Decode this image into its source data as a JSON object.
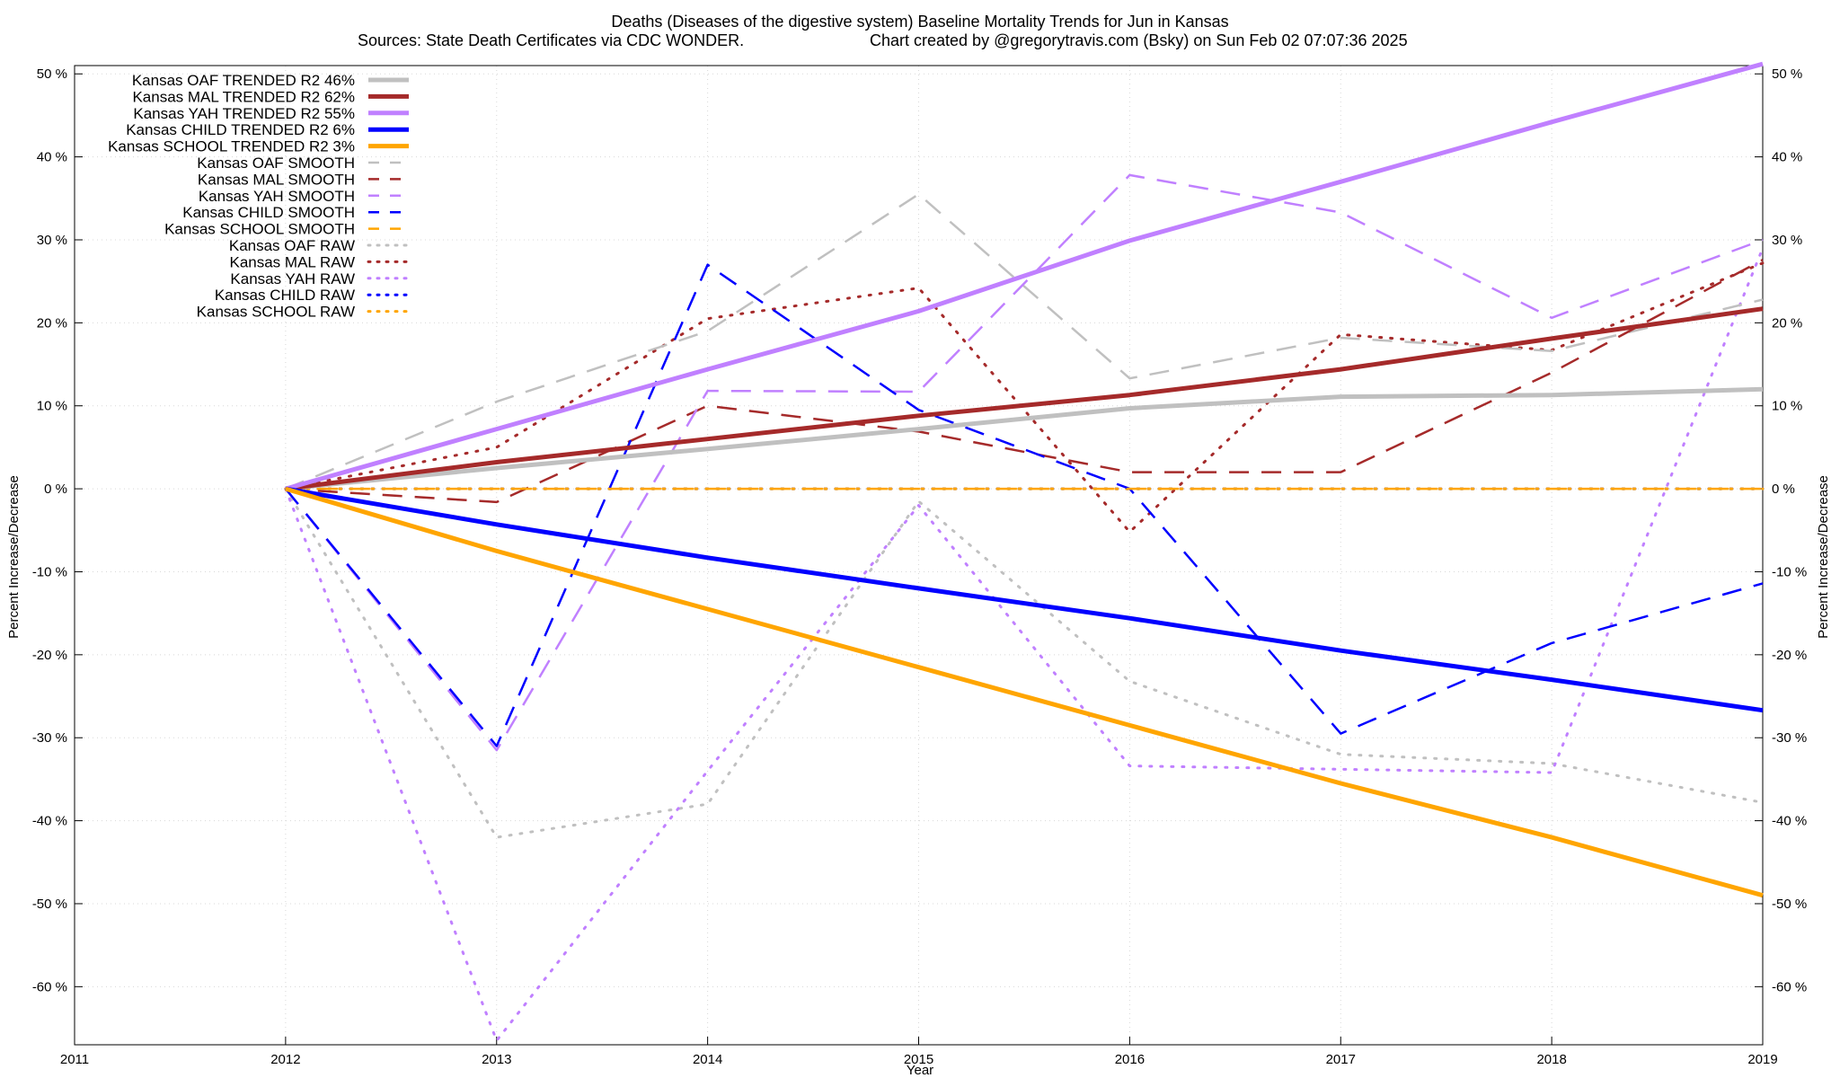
{
  "chart_data": {
    "type": "line",
    "title": "Deaths (Diseases of the digestive system)  Baseline Mortality Trends for Jun in Kansas",
    "subtitle_left": "Sources: State Death Certificates via CDC WONDER.",
    "subtitle_right": "Chart created by @gregorytravis.com (Bsky) on Sun Feb 02 07:07:36 2025",
    "xlabel": "Year",
    "ylabel": "Percent Increase/Decrease",
    "xlim": [
      2011,
      2019
    ],
    "ylim": [
      -67,
      51
    ],
    "x_ticks": [
      "2011",
      "2012",
      "2013",
      "2014",
      "2015",
      "2016",
      "2017",
      "2018",
      "2019"
    ],
    "y_ticks": [
      {
        "v": 50,
        "label": "50 %"
      },
      {
        "v": 40,
        "label": "40 %"
      },
      {
        "v": 30,
        "label": "30 %"
      },
      {
        "v": 20,
        "label": "20 %"
      },
      {
        "v": 10,
        "label": "10 %"
      },
      {
        "v": 0,
        "label": "0 %"
      },
      {
        "v": -10,
        "label": "-10 %"
      },
      {
        "v": -20,
        "label": "-20 %"
      },
      {
        "v": -30,
        "label": "-30 %"
      },
      {
        "v": -40,
        "label": "-40 %"
      },
      {
        "v": -50,
        "label": "-50 %"
      },
      {
        "v": -60,
        "label": "-60 %"
      }
    ],
    "grid": true,
    "legend_position": "top-left",
    "x": [
      2012,
      2013,
      2014,
      2015,
      2016,
      2017,
      2018,
      2019
    ],
    "series": [
      {
        "name": "Kansas OAF TRENDED R2  46%",
        "style": "solid",
        "color": "#c0c0c0",
        "values": [
          0,
          2.5,
          4.8,
          7.2,
          9.7,
          11.1,
          11.3,
          12.0
        ]
      },
      {
        "name": "Kansas MAL TRENDED R2  62%",
        "style": "solid",
        "color": "#a52a2a",
        "values": [
          0,
          3.2,
          6.0,
          8.8,
          11.3,
          14.4,
          18.1,
          21.7
        ]
      },
      {
        "name": "Kansas YAH TRENDED R2  55%",
        "style": "solid",
        "color": "#c080ff",
        "values": [
          0,
          7.2,
          14.4,
          21.4,
          29.9,
          37.0,
          44.2,
          51.2
        ]
      },
      {
        "name": "Kansas CHILD TRENDED R2   6%",
        "style": "solid",
        "color": "#0000ff",
        "values": [
          0,
          -4.3,
          -8.3,
          -12.0,
          -15.6,
          -19.5,
          -23.0,
          -26.7
        ]
      },
      {
        "name": "Kansas SCHOOL TRENDED R2   3%",
        "style": "solid",
        "color": "#ffa500",
        "values": [
          0,
          -7.5,
          -14.5,
          -21.5,
          -28.5,
          -35.5,
          -42.0,
          -49.0
        ]
      },
      {
        "name": "Kansas OAF SMOOTH",
        "style": "dashed",
        "color": "#c0c0c0",
        "values": [
          0,
          10.5,
          19.0,
          35.5,
          13.3,
          18.2,
          16.6,
          22.8
        ]
      },
      {
        "name": "Kansas MAL SMOOTH",
        "style": "dashed",
        "color": "#a52a2a",
        "values": [
          0,
          -1.6,
          10.0,
          6.9,
          2.0,
          2.0,
          14.0,
          27.6
        ]
      },
      {
        "name": "Kansas YAH SMOOTH",
        "style": "dashed",
        "color": "#c080ff",
        "values": [
          0,
          -31.5,
          11.8,
          11.7,
          37.8,
          33.3,
          20.6,
          30.0
        ]
      },
      {
        "name": "Kansas CHILD SMOOTH",
        "style": "dashed",
        "color": "#0000ff",
        "values": [
          0,
          -31.0,
          27.0,
          9.5,
          0.0,
          -29.5,
          -18.6,
          -11.4
        ]
      },
      {
        "name": "Kansas SCHOOL SMOOTH",
        "style": "dashed",
        "color": "#ffa500",
        "values": [
          0,
          0,
          0,
          0,
          0,
          0,
          0,
          0
        ]
      },
      {
        "name": "Kansas OAF RAW",
        "style": "dotted",
        "color": "#c0c0c0",
        "values": [
          0,
          -42.0,
          -38.0,
          -1.5,
          -23.2,
          -32.0,
          -33.1,
          -37.8
        ]
      },
      {
        "name": "Kansas MAL RAW",
        "style": "dotted",
        "color": "#a52a2a",
        "values": [
          0,
          5.0,
          20.5,
          24.2,
          -5.2,
          18.6,
          16.7,
          27.2
        ]
      },
      {
        "name": "Kansas YAH RAW",
        "style": "dotted",
        "color": "#c080ff",
        "values": [
          0,
          -66.5,
          -34.0,
          -2.0,
          -33.4,
          -33.8,
          -34.2,
          29.0
        ]
      },
      {
        "name": "Kansas CHILD RAW",
        "style": "dotted",
        "color": "#0000ff",
        "values": [
          0,
          0,
          0,
          0,
          0,
          0,
          0,
          0
        ]
      },
      {
        "name": "Kansas SCHOOL RAW",
        "style": "dotted",
        "color": "#ffa500",
        "values": [
          0,
          0,
          0,
          0,
          0,
          0,
          0,
          0
        ]
      }
    ]
  }
}
